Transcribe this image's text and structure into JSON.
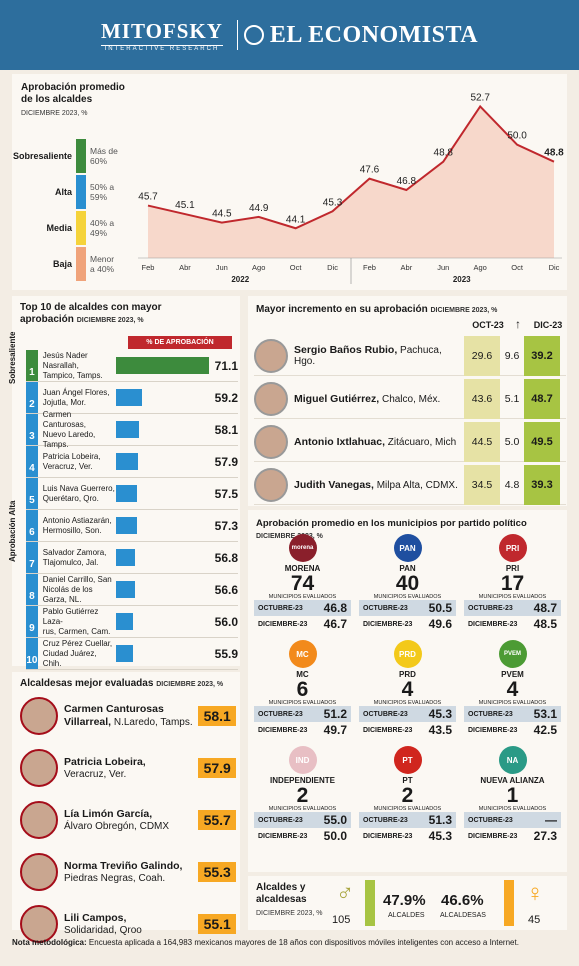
{
  "header": {
    "brand1": "MITOFSKY",
    "brand1_tag": "INTERACTIVE RESEARCH",
    "brand2": "EL ECONOMISTA"
  },
  "approval_section": {
    "title_line1": "Aprobación promedio",
    "title_line2": "de los alcaldes",
    "subtitle": "DICIEMBRE 2023, %",
    "levels": [
      {
        "label": "Sobresaliente",
        "desc": "Más de 60%",
        "color": "#3d8b3d"
      },
      {
        "label": "Alta",
        "desc": "50% a 59%",
        "color": "#2a8fd0"
      },
      {
        "label": "Media",
        "desc": "40% a 49%",
        "color": "#f5d33a"
      },
      {
        "label": "Baja",
        "desc": "Menor a 40%",
        "color": "#f0a37a"
      }
    ]
  },
  "chart_data": {
    "type": "line",
    "title": "Aprobación promedio de los alcaldes",
    "subtitle": "DICIEMBRE 2023, %",
    "categories": [
      "Feb",
      "Abr",
      "Jun",
      "Ago",
      "Oct",
      "Dic",
      "Feb",
      "Abr",
      "Jun",
      "Ago",
      "Oct",
      "Dic"
    ],
    "groups": [
      {
        "label": "2022",
        "from": 0,
        "to": 5
      },
      {
        "label": "2023",
        "from": 6,
        "to": 11
      }
    ],
    "values": [
      45.7,
      45.1,
      44.5,
      44.9,
      44.1,
      45.3,
      47.6,
      46.8,
      48.8,
      52.7,
      50.0,
      48.8
    ],
    "value_labels": [
      "45.7",
      "45.1",
      "44.5",
      "44.9",
      "44.1",
      "45.3",
      "47.6",
      "46.8",
      "48.8",
      "52.7",
      "50.0",
      "48.8"
    ],
    "ylim": [
      42,
      54
    ],
    "color": "#c0282d"
  },
  "top10": {
    "title_line1": "Top 10 de alcaldes con mayor",
    "title_line2": "aprobación",
    "subtitle": "DICIEMBRE 2023, %",
    "column_header": "% DE APROBACIÓN",
    "group_top": "Sobresaliente",
    "group_bottom": "Aprobación Alta",
    "max": 75,
    "items": [
      {
        "rank": "1",
        "line1": "Jesús Nader Nasrallah,",
        "line2": "Tampico, Tamps.",
        "value": 71.1,
        "label": "71.1",
        "color": "#3d8b3d"
      },
      {
        "rank": "2",
        "line1": "Juan Ángel Flores,",
        "line2": "Jojutla, Mor.",
        "value": 59.2,
        "label": "59.2",
        "color": "#2a8fd0"
      },
      {
        "rank": "3",
        "line1": "Carmen Canturosas,",
        "line2": "Nuevo Laredo, Tamps.",
        "value": 58.1,
        "label": "58.1",
        "color": "#2a8fd0"
      },
      {
        "rank": "4",
        "line1": "Patricia Lobeira,",
        "line2": "Veracruz, Ver.",
        "value": 57.9,
        "label": "57.9",
        "color": "#2a8fd0"
      },
      {
        "rank": "5",
        "line1": "Luis Nava Guerrero,",
        "line2": "Querétaro, Qro.",
        "value": 57.5,
        "label": "57.5",
        "color": "#2a8fd0"
      },
      {
        "rank": "6",
        "line1": "Antonio Astiazarán,",
        "line2": "Hermosillo, Son.",
        "value": 57.3,
        "label": "57.3",
        "color": "#2a8fd0"
      },
      {
        "rank": "7",
        "line1": "Salvador Zamora,",
        "line2": "Tlajomulco, Jal.",
        "value": 56.8,
        "label": "56.8",
        "color": "#2a8fd0"
      },
      {
        "rank": "8",
        "line1": "Daniel Carrillo, San",
        "line2": "Nicolás de los Garza, NL.",
        "value": 56.6,
        "label": "56.6",
        "color": "#2a8fd0"
      },
      {
        "rank": "9",
        "line1": "Pablo Gutiérrez Laza-",
        "line2": "rus, Carmen, Cam.",
        "value": 56.0,
        "label": "56.0",
        "color": "#2a8fd0"
      },
      {
        "rank": "10",
        "line1": "Cruz Pérez Cuellar,",
        "line2": "Ciudad Juárez, Chih.",
        "value": 55.9,
        "label": "55.9",
        "color": "#2a8fd0"
      }
    ]
  },
  "alcaldesas": {
    "title": "Alcaldesas mejor evaluadas",
    "subtitle": "DICIEMBRE 2023, %",
    "items": [
      {
        "name": "Carmen Canturosas",
        "name2": "Villarreal,",
        "place": "N.Laredo, Tamps.",
        "value": "58.1"
      },
      {
        "name": "Patricia Lobeira,",
        "name2": "",
        "place": "Veracruz, Ver.",
        "value": "57.9"
      },
      {
        "name": "Lía Limón García,",
        "name2": "",
        "place": "Álvaro Obregón, CDMX",
        "value": "55.7"
      },
      {
        "name": "Norma Treviño Galindo,",
        "name2": "",
        "place": "Piedras Negras, Coah.",
        "value": "55.3"
      },
      {
        "name": "Lili Campos,",
        "name2": "",
        "place": "Solidaridad, Qroo",
        "value": "55.1"
      }
    ]
  },
  "increment": {
    "title": "Mayor incremento en su aprobación",
    "subtitle": "DICIEMBRE 2023, %",
    "col1": "OCT-23",
    "col3": "DIC-23",
    "items": [
      {
        "name": "Sergio Baños Rubio,",
        "place": "Pachuca, Hgo.",
        "oct": "29.6",
        "diff": "9.6",
        "dic": "39.2"
      },
      {
        "name": "Miguel Gutiérrez,",
        "place": "Chalco, Méx.",
        "oct": "43.6",
        "diff": "5.1",
        "dic": "48.7"
      },
      {
        "name": "Antonio Ixtlahuac,",
        "place": "Zitácuaro, Mich",
        "oct": "44.5",
        "diff": "5.0",
        "dic": "49.5"
      },
      {
        "name": "Judith Vanegas,",
        "place": "Milpa Alta, CDMX.",
        "oct": "34.5",
        "diff": "4.8",
        "dic": "39.3"
      }
    ]
  },
  "parties": {
    "title": "Aprobación promedio en los municipios por partido político",
    "subtitle": "DICIEMBRE 2023, %",
    "mun_label": "MUNICIPIOS EVALUADOS",
    "oct_label": "OCTUBRE-23",
    "dic_label": "DICIEMBRE-23",
    "items": [
      {
        "name": "MORENA",
        "logo": "morena",
        "count": "74",
        "oct": "46.8",
        "dic": "46.7",
        "color": "#8a1f2b"
      },
      {
        "name": "PAN",
        "logo": "PAN",
        "count": "40",
        "oct": "50.5",
        "dic": "49.6",
        "color": "#1f4fa0"
      },
      {
        "name": "PRI",
        "logo": "PRI",
        "count": "17",
        "oct": "48.7",
        "dic": "48.5",
        "color": "#c0282d"
      },
      {
        "name": "MC",
        "logo": "MC",
        "count": "6",
        "oct": "51.2",
        "dic": "49.7",
        "color": "#f28a1b"
      },
      {
        "name": "PRD",
        "logo": "PRD",
        "count": "4",
        "oct": "45.3",
        "dic": "43.5",
        "color": "#f3c91a"
      },
      {
        "name": "PVEM",
        "logo": "PVEM",
        "count": "4",
        "oct": "53.1",
        "dic": "42.5",
        "color": "#4c9b34"
      },
      {
        "name": "INDEPENDIENTE",
        "logo": "IND",
        "count": "2",
        "oct": "55.0",
        "dic": "50.0",
        "color": "#e8bfc4"
      },
      {
        "name": "PT",
        "logo": "PT",
        "count": "2",
        "oct": "51.3",
        "dic": "45.3",
        "color": "#d0261e"
      },
      {
        "name": "NUEVA ALIANZA",
        "logo": "NA",
        "count": "1",
        "oct": "—",
        "dic": "27.3",
        "color": "#2a9a86"
      }
    ]
  },
  "gender": {
    "title_line1": "Alcaldes y",
    "title_line2": "alcaldesas",
    "subtitle": "DICIEMBRE 2023, %",
    "men_count": "105",
    "men_pct": "47.9%",
    "men_label": "ALCALDES",
    "women_pct": "46.6%",
    "women_label": "ALCALDESAS",
    "women_count": "45"
  },
  "footer": {
    "label": "Nota metodológica:",
    "text": "Encuesta aplicada a 164,983 mexicanos mayores de 18 años con dispositivos móviles inteligentes con acceso a Internet."
  }
}
